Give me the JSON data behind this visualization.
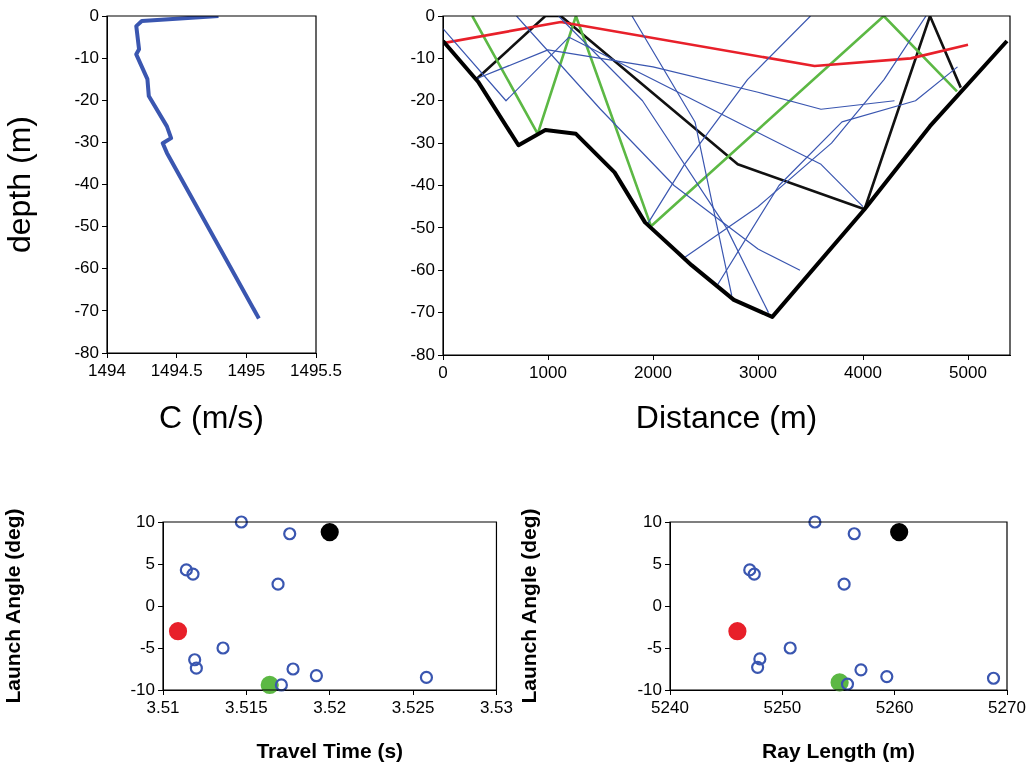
{
  "chart_data": [
    {
      "type": "line",
      "xlabel": "C (m/s)",
      "ylabel": "depth (m)",
      "xlim": [
        1494,
        1495.5
      ],
      "xticks": [
        1494,
        1494.5,
        1495,
        1495.5
      ],
      "ylim": [
        -80,
        0
      ],
      "yticks": [
        -80,
        -70,
        -60,
        -50,
        -40,
        -30,
        -20,
        -10,
        0
      ],
      "grid": false,
      "legend": false,
      "marker": "none",
      "line_style": "solid",
      "series": [
        {
          "color": "#3a56b0",
          "x": [
            1494.8,
            1494.25,
            1494.21,
            1494.23,
            1494.21,
            1494.29,
            1494.3,
            1494.43,
            1494.46,
            1494.4,
            1494.43,
            1495.09
          ],
          "values": [
            0,
            -1.2,
            -2.4,
            -7.9,
            -9.1,
            -15,
            -19,
            -26.2,
            -29,
            -30.2,
            -32.5,
            -71.8
          ]
        }
      ]
    },
    {
      "type": "line",
      "xlabel": "Distance (m)",
      "xlim": [
        0,
        5400
      ],
      "xticks": [
        0,
        1000,
        2000,
        3000,
        4000,
        5000
      ],
      "ylim": [
        -80,
        0
      ],
      "yticks": [
        -80,
        -70,
        -60,
        -50,
        -40,
        -30,
        -20,
        -10,
        0
      ],
      "grid": false,
      "legend": false,
      "marker": "none",
      "line_style": "solid",
      "series": [
        {
          "color": "#000000",
          "x": [
            0,
            334,
            462,
            719,
            975,
            1266,
            1634,
            1924,
            2367,
            2770,
            3136,
            4015,
            4638,
            5371
          ],
          "values": [
            -5.9,
            -15.5,
            -20.5,
            -30.5,
            -26.9,
            -27.8,
            -36.9,
            -48.7,
            -58.8,
            -67,
            -71,
            -45.6,
            -26,
            -5.9
          ]
        },
        {
          "color": "#3a56b0",
          "x": [
            0,
            600,
            1200,
            2000,
            2800,
            3600,
            4000
          ],
          "values": [
            -3,
            -20,
            -5,
            -15,
            -25,
            -35,
            -45
          ]
        },
        {
          "color": "#3a56b0",
          "x": [
            1100,
            1900,
            2700,
            3100
          ],
          "values": [
            0,
            -20,
            -50,
            -70
          ]
        },
        {
          "color": "#3a56b0",
          "x": [
            1800,
            2400,
            2750
          ],
          "values": [
            0,
            -25,
            -66
          ]
        },
        {
          "color": "#3a56b0",
          "x": [
            2300,
            3000,
            3700,
            4200,
            4600
          ],
          "values": [
            -57,
            -45,
            -30,
            -15,
            0
          ]
        },
        {
          "color": "#3a56b0",
          "x": [
            3500,
            2900,
            2300,
            1950
          ],
          "values": [
            0,
            -15,
            -35,
            -49
          ]
        },
        {
          "color": "#3a56b0",
          "x": [
            300,
            1000,
            2000,
            3000,
            3600,
            4300
          ],
          "values": [
            -15,
            -8,
            -12,
            -18,
            -22,
            -20
          ]
        },
        {
          "color": "#3a56b0",
          "x": [
            700,
            1500,
            2200,
            3000,
            3400
          ],
          "values": [
            0,
            -22,
            -40,
            -55,
            -60
          ]
        },
        {
          "color": "#3a56b0",
          "x": [
            2600,
            3200,
            3800,
            4500,
            4900
          ],
          "values": [
            -64,
            -40,
            -25,
            -20,
            -12
          ]
        },
        {
          "color": "#e8202a",
          "x": [
            0,
            1122,
            3539,
            4455,
            5000
          ],
          "values": [
            -6.4,
            -1.4,
            -11.8,
            -10,
            -6.8
          ]
        },
        {
          "color": "#5cb844",
          "x": [
            279,
            902,
            1266,
            1981,
            4198,
            4895
          ],
          "values": [
            0,
            -27.8,
            0,
            -49.6,
            0,
            -17.8
          ]
        },
        {
          "color": "#111111",
          "x": [
            314,
            975,
            1122,
            2807,
            4015,
            4638,
            4931
          ],
          "values": [
            -15,
            0,
            0,
            -35,
            -45.6,
            0,
            -16.9
          ]
        }
      ]
    },
    {
      "type": "scatter",
      "xlabel": "Travel Time (s)",
      "ylabel": "Launch Angle (deg)",
      "xlim": [
        3.51,
        3.53
      ],
      "xticks": [
        3.51,
        3.515,
        3.52,
        3.525,
        3.53
      ],
      "ylim": [
        -10,
        10
      ],
      "yticks": [
        -10,
        -5,
        0,
        5,
        10
      ],
      "grid": false,
      "legend": false,
      "marker": "circle",
      "series": [
        {
          "color": "#3a56b0",
          "x": [
            3.5147,
            3.5176,
            3.5114,
            3.5118,
            3.5169,
            3.5136,
            3.5119,
            3.512,
            3.5178,
            3.5192,
            3.5258,
            3.5171
          ],
          "values": [
            10,
            8.6,
            4.3,
            3.8,
            2.6,
            -5,
            -6.4,
            -7.4,
            -7.5,
            -8.3,
            -8.5,
            -9.4
          ]
        },
        {
          "color": "#e8202a",
          "x": [
            3.5109
          ],
          "values": [
            -3
          ]
        },
        {
          "color": "#5cb844",
          "x": [
            3.5164
          ],
          "values": [
            -9.4
          ]
        },
        {
          "color": "#000000",
          "x": [
            3.52
          ],
          "values": [
            8.8
          ]
        }
      ]
    },
    {
      "type": "scatter",
      "xlabel": "Ray Length (m)",
      "ylabel": "Launch Angle (deg)",
      "xlim": [
        5240,
        5270
      ],
      "xticks": [
        5240,
        5250,
        5260,
        5270
      ],
      "ylim": [
        -10,
        10
      ],
      "yticks": [
        -10,
        -5,
        0,
        5,
        10
      ],
      "grid": false,
      "legend": false,
      "marker": "circle",
      "series": [
        {
          "color": "#3a56b0",
          "x": [
            5252.9,
            5256.4,
            5247.1,
            5247.5,
            5255.5,
            5250.7,
            5248,
            5247.8,
            5257,
            5259.3,
            5268.8,
            5255.8
          ],
          "values": [
            10,
            8.6,
            4.3,
            3.8,
            2.6,
            -5,
            -6.3,
            -7.3,
            -7.6,
            -8.4,
            -8.6,
            -9.3
          ]
        },
        {
          "color": "#e8202a",
          "x": [
            5246
          ],
          "values": [
            -3
          ]
        },
        {
          "color": "#5cb844",
          "x": [
            5255.1
          ],
          "values": [
            -9.1
          ]
        },
        {
          "color": "#000000",
          "x": [
            5260.4
          ],
          "values": [
            8.8
          ]
        }
      ]
    }
  ]
}
